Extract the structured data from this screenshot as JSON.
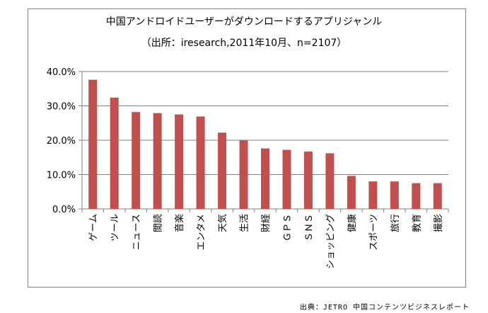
{
  "source_note": "出典：JETRO 中国コンテンツビジネスレポート",
  "chart_data": {
    "type": "bar",
    "title": "中国アンドロイドユーザーがダウンロードするアプリジャンル",
    "subtitle": "（出所：iresearch,2011年10月、n=2107）",
    "categories": [
      "ゲーム",
      "ツール",
      "ニュース",
      "閲読",
      "音楽",
      "エンタメ",
      "天気",
      "生活",
      "財経",
      "ＧＰＳ",
      "ＳＮＳ",
      "ショッピング",
      "健康",
      "スポーツ",
      "旅行",
      "教育",
      "撮影"
    ],
    "values": [
      37.6,
      32.4,
      28.2,
      27.9,
      27.5,
      26.9,
      22.2,
      19.9,
      17.6,
      17.2,
      16.7,
      16.2,
      9.6,
      8.0,
      8.0,
      7.5,
      7.5
    ],
    "ylim": [
      0,
      40
    ],
    "yticks": [
      0,
      10,
      20,
      30,
      40
    ],
    "ytick_labels": [
      "0.0%",
      "10.0%",
      "20.0%",
      "30.0%",
      "40.0%"
    ],
    "bar_color": "#c0504d",
    "grid": true,
    "legend": "none"
  }
}
